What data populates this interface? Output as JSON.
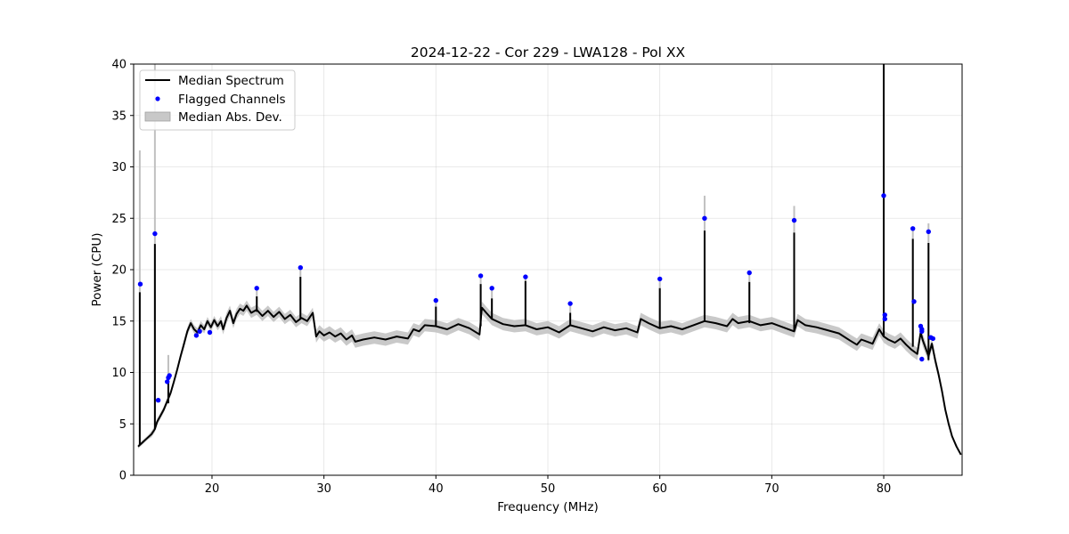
{
  "chart_data": {
    "type": "line",
    "title": "2024-12-22 - Cor 229 - LWA128 - Pol XX",
    "xlabel": "Frequency (MHz)",
    "ylabel": "Power (CPU)",
    "xlim": [
      13,
      87
    ],
    "ylim": [
      0,
      40
    ],
    "xticks": [
      20,
      30,
      40,
      50,
      60,
      70,
      80
    ],
    "xtick_labels": [
      "20",
      "30",
      "40",
      "50",
      "60",
      "70",
      "80"
    ],
    "yticks": [
      0,
      5,
      10,
      15,
      20,
      25,
      30,
      35,
      40
    ],
    "ytick_labels": [
      "0",
      "5",
      "10",
      "15",
      "20",
      "25",
      "30",
      "35",
      "40"
    ],
    "grid": true,
    "legend": {
      "placement": "top-left",
      "entries": [
        {
          "label": "Median Spectrum",
          "kind": "line",
          "color": "#000000"
        },
        {
          "label": "Flagged Channels",
          "kind": "marker",
          "color": "#0000ff"
        },
        {
          "label": "Median Abs. Dev.",
          "kind": "patch",
          "color": "#c8c8c8"
        }
      ]
    },
    "colors": {
      "median": "#000000",
      "flagged": "#0000ff",
      "band": "#c0c0c0"
    },
    "median_spectrum": {
      "x": [
        13.4,
        13.6,
        13.8,
        14.0,
        14.3,
        14.6,
        14.9,
        15.1,
        15.4,
        15.7,
        16.0,
        16.3,
        16.6,
        16.9,
        17.2,
        17.5,
        17.8,
        18.1,
        18.4,
        18.7,
        19.0,
        19.3,
        19.6,
        19.9,
        20.2,
        20.5,
        20.8,
        21.0,
        21.3,
        21.6,
        21.9,
        22.2,
        22.5,
        22.8,
        23.1,
        23.5,
        24.0,
        24.5,
        25.0,
        25.5,
        26.0,
        26.5,
        27.0,
        27.5,
        28.0,
        28.5,
        29.0,
        29.3,
        29.6,
        30.0,
        30.5,
        31.0,
        31.5,
        32.0,
        32.5,
        32.8,
        33.5,
        34.5,
        35.5,
        36.5,
        37.5,
        38.0,
        38.5,
        39.0,
        40.0,
        41.0,
        42.0,
        43.0,
        43.9,
        44.1,
        44.5,
        45.0,
        46.0,
        47.0,
        48.0,
        49.0,
        50.0,
        51.0,
        52.0,
        53.0,
        54.0,
        55.0,
        56.0,
        57.0,
        58.0,
        58.3,
        59.0,
        60.0,
        61.0,
        62.0,
        63.0,
        64.0,
        65.0,
        66.0,
        66.5,
        67.0,
        68.0,
        69.0,
        70.0,
        71.0,
        72.0,
        72.3,
        73.0,
        74.0,
        75.0,
        76.0,
        77.0,
        77.6,
        78.0,
        79.0,
        79.6,
        80.0,
        80.4,
        81.0,
        81.5,
        82.0,
        82.5,
        83.0,
        83.3,
        83.5,
        84.0,
        84.3,
        84.6,
        84.9,
        85.2,
        85.5,
        85.8,
        86.1,
        86.5,
        86.9
      ],
      "y": [
        2.8,
        3.0,
        3.2,
        3.4,
        3.7,
        4.0,
        4.5,
        5.2,
        5.8,
        6.4,
        7.2,
        8.0,
        9.1,
        10.3,
        11.6,
        12.8,
        14.0,
        14.8,
        14.2,
        13.9,
        14.6,
        14.2,
        15.0,
        14.4,
        15.1,
        14.5,
        15.0,
        14.2,
        15.3,
        16.0,
        14.8,
        15.7,
        16.2,
        16.0,
        16.5,
        15.8,
        16.1,
        15.5,
        16.0,
        15.4,
        15.9,
        15.2,
        15.6,
        14.9,
        15.3,
        15.0,
        15.8,
        13.5,
        14.0,
        13.6,
        13.9,
        13.5,
        13.8,
        13.2,
        13.6,
        13.0,
        13.2,
        13.4,
        13.2,
        13.5,
        13.3,
        14.2,
        14.0,
        14.6,
        14.5,
        14.2,
        14.7,
        14.3,
        13.7,
        16.3,
        15.8,
        15.2,
        14.7,
        14.5,
        14.6,
        14.2,
        14.4,
        13.9,
        14.6,
        14.3,
        14.0,
        14.4,
        14.1,
        14.3,
        13.9,
        15.2,
        14.8,
        14.3,
        14.5,
        14.2,
        14.6,
        15.0,
        14.8,
        14.5,
        15.2,
        14.8,
        15.0,
        14.6,
        14.8,
        14.4,
        14.0,
        15.1,
        14.6,
        14.4,
        14.1,
        13.8,
        13.1,
        12.7,
        13.2,
        12.8,
        14.2,
        13.5,
        13.2,
        12.9,
        13.3,
        12.7,
        12.2,
        11.8,
        13.9,
        13.1,
        11.6,
        12.8,
        11.2,
        9.8,
        8.2,
        6.4,
        5.0,
        3.8,
        2.8,
        2.0
      ],
      "mad": [
        0.2,
        0.2,
        0.2,
        0.2,
        0.2,
        0.3,
        0.3,
        0.3,
        0.3,
        0.3,
        0.3,
        0.3,
        0.3,
        0.3,
        0.3,
        0.4,
        0.4,
        0.4,
        0.4,
        0.4,
        0.4,
        0.4,
        0.4,
        0.4,
        0.4,
        0.4,
        0.5,
        0.5,
        0.5,
        0.5,
        0.5,
        0.5,
        0.5,
        0.5,
        0.5,
        0.5,
        0.5,
        0.5,
        0.5,
        0.5,
        0.5,
        0.5,
        0.5,
        0.5,
        0.5,
        0.5,
        0.5,
        0.6,
        0.6,
        0.6,
        0.6,
        0.6,
        0.6,
        0.6,
        0.6,
        0.6,
        0.6,
        0.6,
        0.6,
        0.6,
        0.6,
        0.6,
        0.6,
        0.6,
        0.6,
        0.6,
        0.6,
        0.6,
        0.6,
        0.6,
        0.6,
        0.6,
        0.6,
        0.6,
        0.6,
        0.6,
        0.6,
        0.6,
        0.6,
        0.6,
        0.6,
        0.6,
        0.6,
        0.6,
        0.6,
        0.6,
        0.6,
        0.6,
        0.6,
        0.6,
        0.6,
        0.6,
        0.6,
        0.6,
        0.6,
        0.6,
        0.6,
        0.6,
        0.6,
        0.6,
        0.6,
        0.6,
        0.6,
        0.6,
        0.6,
        0.6,
        0.6,
        0.6,
        0.6,
        0.6,
        0.6,
        0.6,
        0.6,
        0.6,
        0.6,
        0.6,
        0.6,
        0.6,
        0.6,
        0.6,
        0.6,
        0.5,
        0.5,
        0.4,
        0.3,
        0.2,
        0.2,
        0.1,
        0.1,
        0.1
      ]
    },
    "spikes": [
      {
        "x": 13.55,
        "base": 3.0,
        "peak": 17.8,
        "band_top": 31.6
      },
      {
        "x": 14.9,
        "base": 4.5,
        "peak": 22.5,
        "band_top": 40.0
      },
      {
        "x": 16.1,
        "base": 7.0,
        "peak": 9.0,
        "band_top": 11.7
      },
      {
        "x": 24.0,
        "base": 15.9,
        "peak": 17.4,
        "band_top": 18.0
      },
      {
        "x": 27.9,
        "base": 15.2,
        "peak": 19.3,
        "band_top": 20.0
      },
      {
        "x": 40.0,
        "base": 14.5,
        "peak": 16.4,
        "band_top": 17.2
      },
      {
        "x": 44.0,
        "base": 14.5,
        "peak": 18.6,
        "band_top": 19.3
      },
      {
        "x": 45.0,
        "base": 15.2,
        "peak": 17.2,
        "band_top": 18.0
      },
      {
        "x": 48.0,
        "base": 14.5,
        "peak": 18.9,
        "band_top": 19.5
      },
      {
        "x": 52.0,
        "base": 14.6,
        "peak": 15.8,
        "band_top": 16.5
      },
      {
        "x": 60.0,
        "base": 14.3,
        "peak": 18.2,
        "band_top": 19.0
      },
      {
        "x": 64.0,
        "base": 15.0,
        "peak": 23.8,
        "band_top": 27.2
      },
      {
        "x": 68.0,
        "base": 14.8,
        "peak": 18.8,
        "band_top": 19.6
      },
      {
        "x": 72.0,
        "base": 14.0,
        "peak": 23.6,
        "band_top": 26.2
      },
      {
        "x": 80.0,
        "base": 13.5,
        "peak": 40.0,
        "band_top": 40.0
      },
      {
        "x": 82.6,
        "base": 12.5,
        "peak": 23.0,
        "band_top": 24.2
      },
      {
        "x": 84.0,
        "base": 11.2,
        "peak": 22.6,
        "band_top": 24.5
      }
    ],
    "flagged_channels": {
      "x": [
        13.6,
        14.9,
        15.2,
        16.0,
        16.1,
        16.2,
        18.6,
        18.9,
        19.8,
        24.0,
        27.9,
        40.0,
        44.0,
        45.0,
        48.0,
        52.0,
        60.0,
        64.0,
        68.0,
        72.0,
        80.0,
        80.1,
        80.1,
        82.6,
        82.7,
        83.3,
        83.4,
        83.4,
        83.4,
        84.0,
        84.2,
        84.4
      ],
      "y": [
        18.6,
        23.5,
        7.3,
        9.1,
        9.5,
        9.7,
        13.6,
        14.0,
        13.9,
        18.2,
        20.2,
        17.0,
        19.4,
        18.2,
        19.3,
        16.7,
        19.1,
        25.0,
        19.7,
        24.8,
        27.2,
        15.6,
        15.2,
        24.0,
        16.9,
        14.5,
        14.2,
        14.0,
        11.3,
        23.7,
        13.4,
        13.3
      ]
    }
  }
}
